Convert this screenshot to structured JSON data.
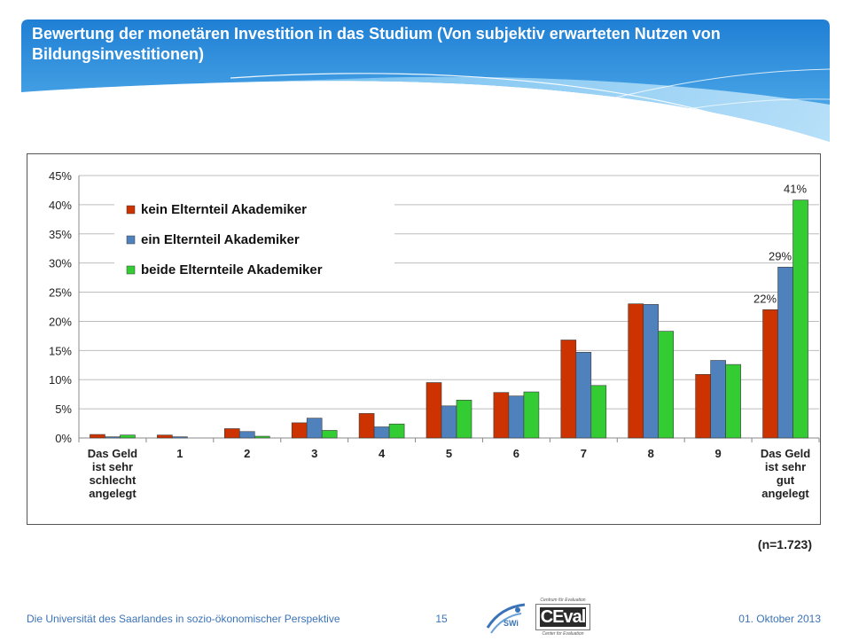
{
  "slide": {
    "title": "Bewertung der monetären Investition in das Studium (Von subjektiv erwarteten Nutzen von Bildungsinvestitionen)",
    "sample_note": "(n=1.723)",
    "footer_left": "Die Universität des Saarlandes in sozio-ökonomischer Perspektive",
    "page_number": "15",
    "footer_date": "01. Oktober 2013",
    "logos": {
      "swi": "SWi",
      "ceval_top": "Centrum für Evaluation",
      "ceval_mark": "CEval",
      "ceval_bottom": "Center for Evaluation"
    },
    "colors": {
      "header_blue": "#2e86d6",
      "footer_text": "#3a73b8"
    }
  },
  "chart_data": {
    "type": "bar",
    "categories": [
      "Das Geld ist sehr schlecht angelegt",
      "1",
      "2",
      "3",
      "4",
      "5",
      "6",
      "7",
      "8",
      "9",
      "Das Geld ist sehr gut angelegt"
    ],
    "category_lines": [
      [
        "Das Geld",
        "ist sehr",
        "schlecht",
        "angelegt"
      ],
      [
        "1"
      ],
      [
        "2"
      ],
      [
        "3"
      ],
      [
        "4"
      ],
      [
        "5"
      ],
      [
        "6"
      ],
      [
        "7"
      ],
      [
        "8"
      ],
      [
        "9"
      ],
      [
        "Das Geld",
        "ist sehr",
        "gut",
        "angelegt"
      ]
    ],
    "series": [
      {
        "name": "kein Elternteil Akademiker",
        "color": "#cc3300",
        "values": [
          0.6,
          0.5,
          1.6,
          2.6,
          4.2,
          9.5,
          7.8,
          16.8,
          23.0,
          10.9,
          22.0
        ]
      },
      {
        "name": "ein Elternteil Akademiker",
        "color": "#4f81bd",
        "values": [
          0.2,
          0.2,
          1.1,
          3.4,
          1.9,
          5.5,
          7.2,
          14.7,
          22.9,
          13.3,
          29.3
        ]
      },
      {
        "name": "beide Elternteile Akademiker",
        "color": "#33cc33",
        "values": [
          0.5,
          0.0,
          0.3,
          1.3,
          2.4,
          6.5,
          7.9,
          9.0,
          18.3,
          12.6,
          40.8
        ]
      }
    ],
    "data_labels": [
      {
        "series": 0,
        "index": 10,
        "text": "22%"
      },
      {
        "series": 1,
        "index": 10,
        "text": "29%"
      },
      {
        "series": 2,
        "index": 10,
        "text": "41%"
      }
    ],
    "ylim": [
      0,
      45
    ],
    "yticks": [
      0,
      5,
      10,
      15,
      20,
      25,
      30,
      35,
      40,
      45
    ],
    "ytick_labels": [
      "0%",
      "5%",
      "10%",
      "15%",
      "20%",
      "25%",
      "30%",
      "35%",
      "40%",
      "45%"
    ],
    "grid": true,
    "legend_position": "top-left",
    "title": "",
    "xlabel": "",
    "ylabel": ""
  }
}
